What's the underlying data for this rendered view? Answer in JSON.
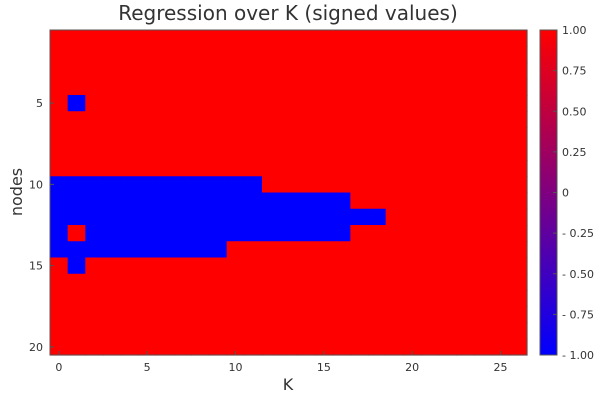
{
  "chart_data": {
    "type": "heatmap",
    "title": "Regression over K (signed values)",
    "xlabel": "K",
    "ylabel": "nodes",
    "x_range": [
      0,
      26
    ],
    "y_range": [
      1,
      20
    ],
    "x_ticks": [
      0,
      5,
      10,
      15,
      20,
      25
    ],
    "y_ticks": [
      5,
      10,
      15,
      20
    ],
    "y_axis_direction": "top-to-bottom",
    "default_value": 1,
    "negative_cells": [
      {
        "row": 5,
        "k_from": 1,
        "k_to": 1
      },
      {
        "row": 10,
        "k_from": 0,
        "k_to": 11
      },
      {
        "row": 11,
        "k_from": 0,
        "k_to": 16
      },
      {
        "row": 12,
        "k_from": 0,
        "k_to": 18
      },
      {
        "row": 13,
        "k_from": 0,
        "k_to": 16
      },
      {
        "row": 14,
        "k_from": 0,
        "k_to": 9
      },
      {
        "row": 15,
        "k_from": 1,
        "k_to": 1
      }
    ],
    "positive_exceptions": [
      {
        "row": 13,
        "k": 1
      }
    ],
    "colorbar": {
      "range": [
        -1,
        1
      ],
      "tick_values": [
        1,
        0.75,
        0.5,
        0.25,
        0,
        -0.25,
        -0.5,
        -0.75,
        -1
      ],
      "tick_labels": [
        "1.00",
        "0.75",
        "0.50",
        "0.25",
        "0",
        "- 0.25",
        "- 0.50",
        "- 0.75",
        "- 1.00"
      ],
      "color_low": "#0000ff",
      "color_high": "#ff0000"
    },
    "grid": false,
    "legend": "colorbar-right"
  }
}
